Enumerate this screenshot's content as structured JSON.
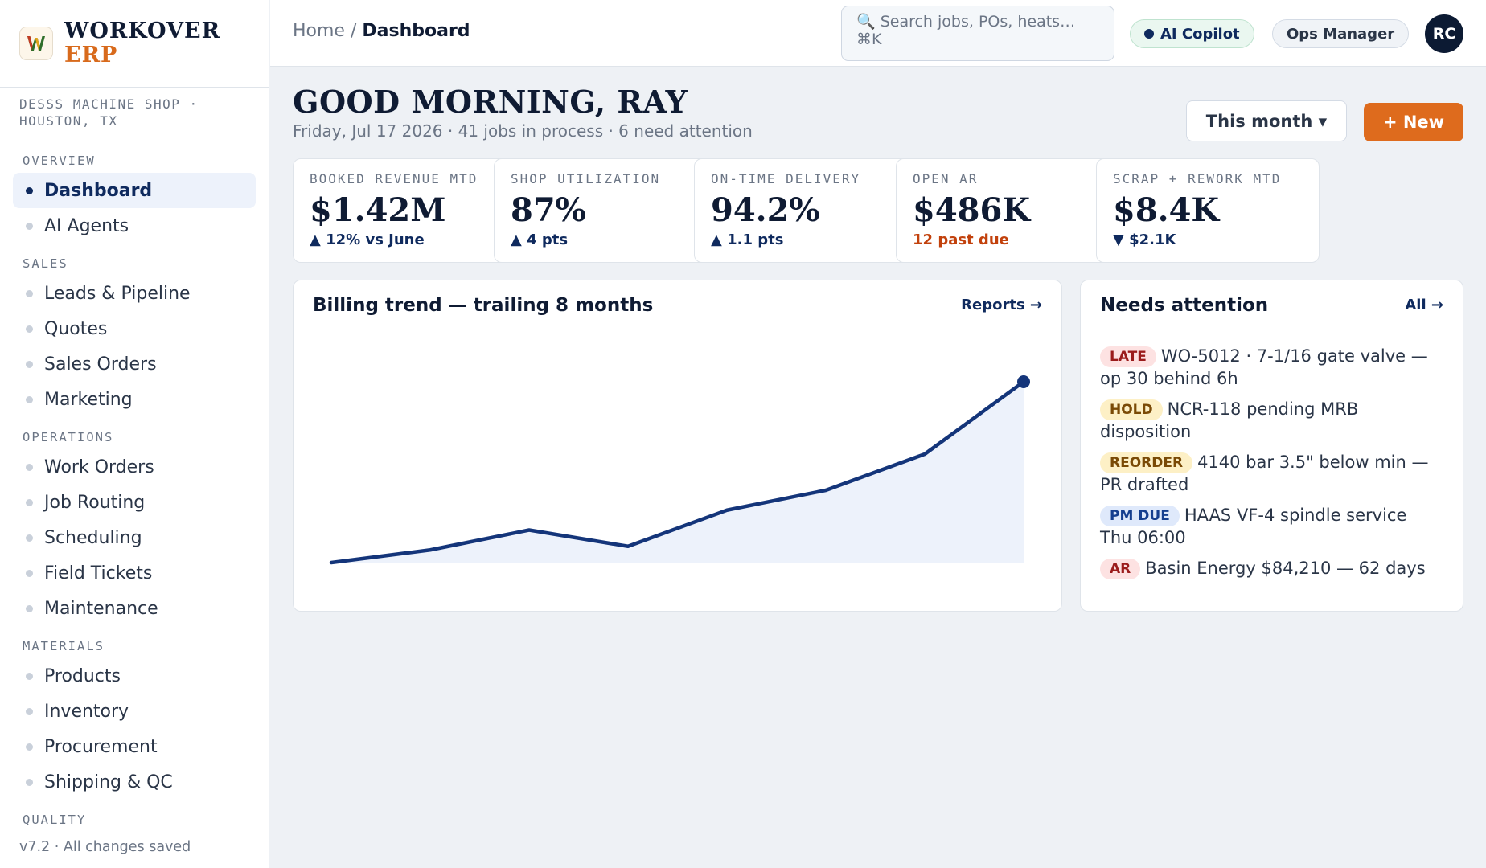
{
  "app": {
    "brand_name": "WORKOVER",
    "brand_sub": "ERP",
    "logo_letter": "W"
  },
  "sidebar": {
    "shop_line": "DESSS MACHINE SHOP · HOUSTON, TX",
    "sections": [
      {
        "title": "OVERVIEW",
        "items": [
          {
            "label": "Dashboard",
            "active": true
          },
          {
            "label": "AI Agents"
          }
        ]
      },
      {
        "title": "SALES",
        "items": [
          {
            "label": "Leads & Pipeline"
          },
          {
            "label": "Quotes"
          },
          {
            "label": "Sales Orders"
          },
          {
            "label": "Marketing"
          }
        ]
      },
      {
        "title": "OPERATIONS",
        "items": [
          {
            "label": "Work Orders"
          },
          {
            "label": "Job Routing"
          },
          {
            "label": "Scheduling"
          },
          {
            "label": "Field Tickets"
          },
          {
            "label": "Maintenance"
          }
        ]
      },
      {
        "title": "MATERIALS",
        "items": [
          {
            "label": "Products"
          },
          {
            "label": "Inventory"
          },
          {
            "label": "Procurement"
          },
          {
            "label": "Shipping & QC"
          }
        ]
      },
      {
        "title": "QUALITY",
        "items": []
      }
    ],
    "footer": "v7.2 · All changes saved"
  },
  "topbar": {
    "breadcrumb_root": "Home",
    "breadcrumb_sep": " / ",
    "breadcrumb_current": "Dashboard",
    "search_placeholder": "🔍 Search jobs, POs, heats… ⌘K",
    "copilot_label": "AI Copilot",
    "role_label": "Ops Manager",
    "avatar_initials": "RC"
  },
  "header": {
    "greeting": "GOOD MORNING, RAY",
    "subline": "Friday, Jul 17 2026 · 41 jobs in process · 6 need attention",
    "period_label": "This month ▾",
    "new_label": "+ New"
  },
  "kpis": [
    {
      "label": "BOOKED REVENUE MTD",
      "value": "$1.42M",
      "delta": "▲ 12% vs June",
      "tone": "up"
    },
    {
      "label": "SHOP UTILIZATION",
      "value": "87%",
      "delta": "▲ 4 pts",
      "tone": "up"
    },
    {
      "label": "ON-TIME DELIVERY",
      "value": "94.2%",
      "delta": "▲ 1.1 pts",
      "tone": "up"
    },
    {
      "label": "OPEN AR",
      "value": "$486K",
      "delta": "12 past due",
      "tone": "bad"
    },
    {
      "label": "SCRAP + REWORK MTD",
      "value": "$8.4K",
      "delta": "▼ $2.1K",
      "tone": "down"
    }
  ],
  "billing_panel": {
    "title": "Billing trend — trailing 8 months",
    "link": "Reports →"
  },
  "chart_data": {
    "type": "area",
    "title": "Billing trend — trailing 8 months",
    "xlabel": "",
    "ylabel": "",
    "x": [
      1,
      2,
      3,
      4,
      5,
      6,
      7,
      8
    ],
    "values": [
      0.0,
      0.07,
      0.18,
      0.09,
      0.29,
      0.4,
      0.6,
      1.0
    ],
    "ylim": [
      0,
      1.0
    ],
    "grid": false,
    "colors": {
      "line": "#14357a",
      "fill": "#edf2fb"
    }
  },
  "attention": {
    "title": "Needs attention",
    "link": "All →",
    "items": [
      {
        "tag": "LATE",
        "kind": "late",
        "text": "WO-5012 · 7-1/16 gate valve — op 30 behind 6h"
      },
      {
        "tag": "HOLD",
        "kind": "hold",
        "text": "NCR-118 pending MRB disposition"
      },
      {
        "tag": "REORDER",
        "kind": "reorder",
        "text": "4140 bar 3.5\" below min — PR drafted"
      },
      {
        "tag": "PM DUE",
        "kind": "pm",
        "text": "HAAS VF-4 spindle service Thu 06:00"
      },
      {
        "tag": "AR",
        "kind": "ar",
        "text": "Basin Energy $84,210 — 62 days"
      }
    ]
  }
}
